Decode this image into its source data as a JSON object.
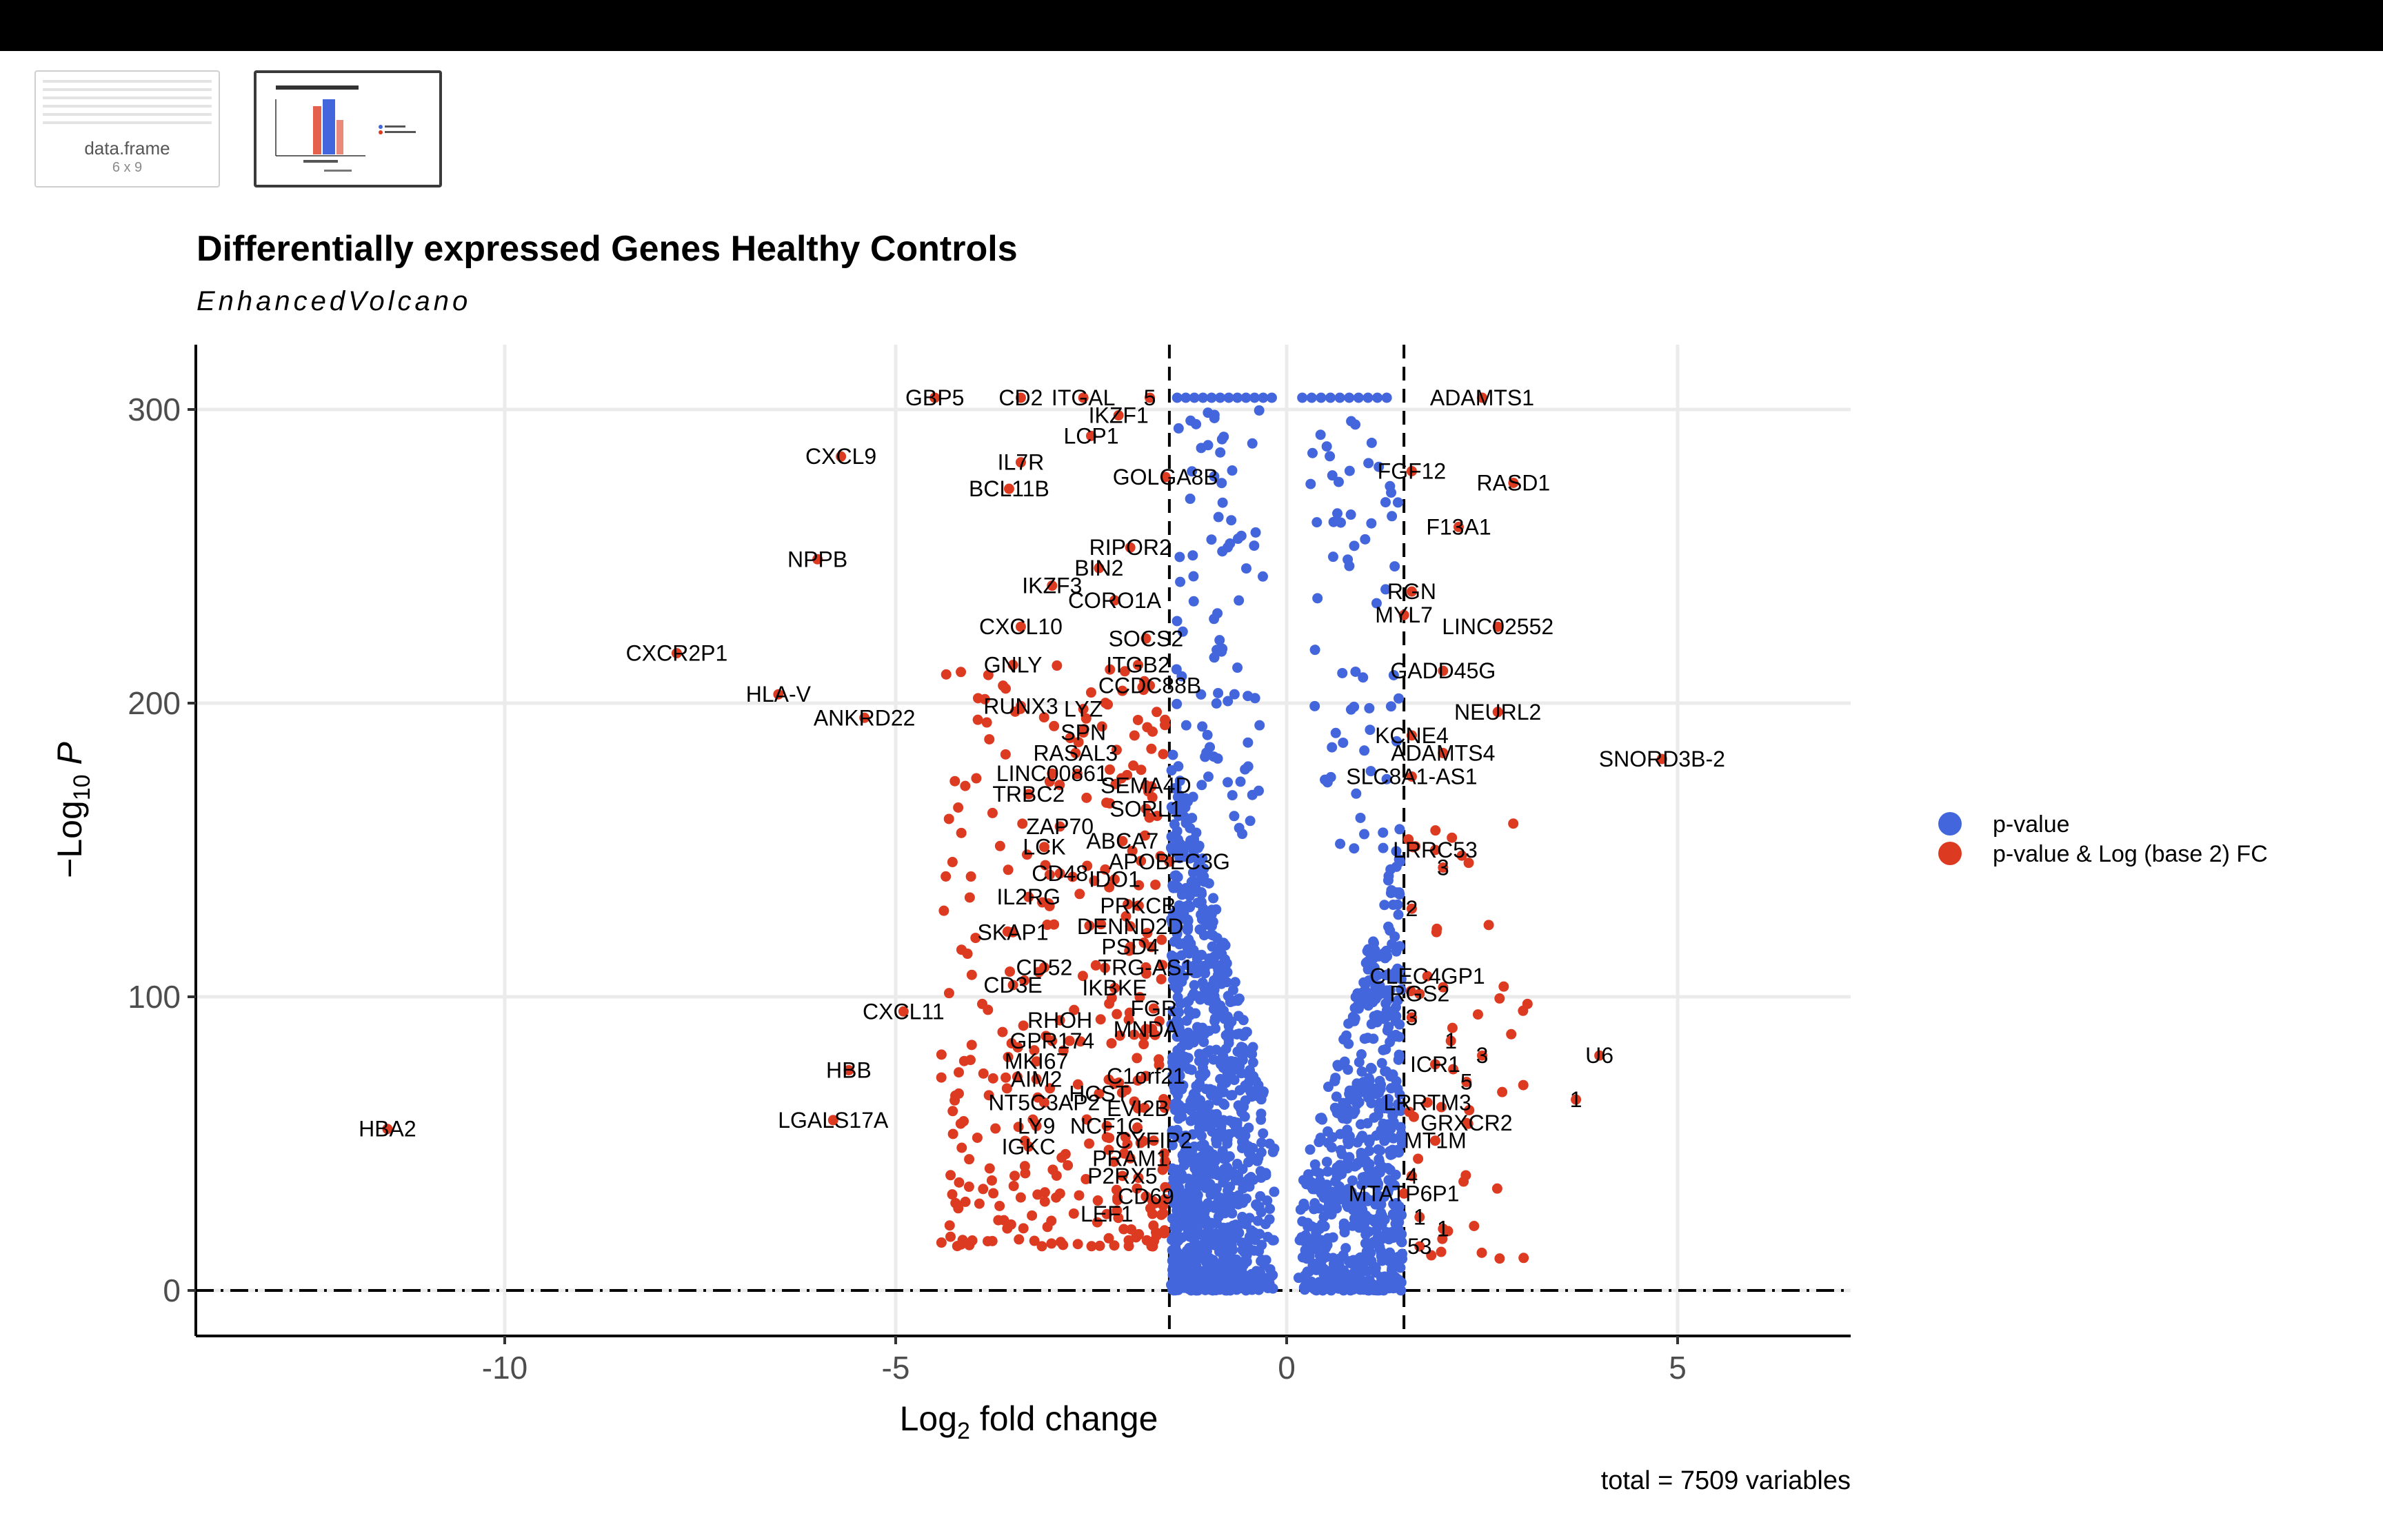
{
  "thumbnails": [
    {
      "label": "data.frame",
      "sublabel": "6 x 9"
    }
  ],
  "chart_data": {
    "type": "scatter",
    "title": "Differentially expressed Genes Healthy Controls",
    "subtitle": "EnhancedVolcano",
    "xlabel": "Log2 fold change",
    "ylabel": "-Log10 P",
    "caption": "total = 7509 variables",
    "xlim": [
      -14,
      7.2
    ],
    "ylim": [
      -15,
      322
    ],
    "x_ticks": [
      -10,
      -5,
      0,
      5
    ],
    "y_ticks": [
      0,
      100,
      200,
      300
    ],
    "fc_cutoff": 1.5,
    "p_cutoff_log10": 0,
    "grid": true,
    "legend_position": "right",
    "colors": {
      "p-value": "#4466dd",
      "p-value & Log (base 2) FC": "#dd3a22",
      "grid": "#ebebeb"
    },
    "series": [
      {
        "name": "p-value"
      },
      {
        "name": "p-value & Log (base 2) FC"
      }
    ],
    "labeled_points": [
      {
        "gene": "GBP5",
        "x": -4.5,
        "y": 304
      },
      {
        "gene": "CD2",
        "x": -3.4,
        "y": 304
      },
      {
        "gene": "ITGAL",
        "x": -2.6,
        "y": 304
      },
      {
        "gene": "5",
        "x": -1.75,
        "y": 304
      },
      {
        "gene": "IKZF1",
        "x": -2.15,
        "y": 298
      },
      {
        "gene": "LCP1",
        "x": -2.5,
        "y": 291
      },
      {
        "gene": "CXCL9",
        "x": -5.7,
        "y": 284
      },
      {
        "gene": "IL7R",
        "x": -3.4,
        "y": 282
      },
      {
        "gene": "GOLGA8B",
        "x": -1.55,
        "y": 277
      },
      {
        "gene": "BCL11B",
        "x": -3.55,
        "y": 273
      },
      {
        "gene": "RIPOR2",
        "x": -2.0,
        "y": 253
      },
      {
        "gene": "NPPB",
        "x": -6.0,
        "y": 249
      },
      {
        "gene": "BIN2",
        "x": -2.4,
        "y": 246
      },
      {
        "gene": "IKZF3",
        "x": -3.0,
        "y": 240
      },
      {
        "gene": "CORO1A",
        "x": -2.2,
        "y": 235
      },
      {
        "gene": "CXCL10",
        "x": -3.4,
        "y": 226
      },
      {
        "gene": "SOCS2",
        "x": -1.8,
        "y": 222
      },
      {
        "gene": "CXCR2P1",
        "x": -7.8,
        "y": 217
      },
      {
        "gene": "GNLY",
        "x": -3.5,
        "y": 213
      },
      {
        "gene": "ITGB2",
        "x": -1.9,
        "y": 213
      },
      {
        "gene": "CCDC88B",
        "x": -1.75,
        "y": 206
      },
      {
        "gene": "HLA-V",
        "x": -6.5,
        "y": 203
      },
      {
        "gene": "RUNX3",
        "x": -3.4,
        "y": 199
      },
      {
        "gene": "LYZ",
        "x": -2.6,
        "y": 198
      },
      {
        "gene": "ANKRD22",
        "x": -5.4,
        "y": 195
      },
      {
        "gene": "SPN",
        "x": -2.6,
        "y": 190
      },
      {
        "gene": "RASAL3",
        "x": -2.7,
        "y": 183
      },
      {
        "gene": "LINC00861",
        "x": -3.0,
        "y": 176
      },
      {
        "gene": "SEMA4D",
        "x": -1.8,
        "y": 172
      },
      {
        "gene": "TRBC2",
        "x": -3.3,
        "y": 169
      },
      {
        "gene": "SORL1",
        "x": -1.8,
        "y": 164
      },
      {
        "gene": "ZAP70",
        "x": -2.9,
        "y": 158
      },
      {
        "gene": "LCK",
        "x": -3.1,
        "y": 151
      },
      {
        "gene": "ABCA7",
        "x": -2.1,
        "y": 153
      },
      {
        "gene": "APOBEC3G",
        "x": -1.5,
        "y": 146
      },
      {
        "gene": "CD48",
        "x": -2.9,
        "y": 142
      },
      {
        "gene": "IDO1",
        "x": -2.2,
        "y": 140
      },
      {
        "gene": "IL2RG",
        "x": -3.3,
        "y": 134
      },
      {
        "gene": "PRKCB",
        "x": -1.9,
        "y": 131
      },
      {
        "gene": "DENND2D",
        "x": -2.0,
        "y": 124
      },
      {
        "gene": "SKAP1",
        "x": -3.5,
        "y": 122
      },
      {
        "gene": "PSD4",
        "x": -2.0,
        "y": 117
      },
      {
        "gene": "CD52",
        "x": -3.1,
        "y": 110
      },
      {
        "gene": "TRG-AS1",
        "x": -1.8,
        "y": 110
      },
      {
        "gene": "CD3E",
        "x": -3.5,
        "y": 104
      },
      {
        "gene": "IKBKE",
        "x": -2.2,
        "y": 103
      },
      {
        "gene": "FGR",
        "x": -1.7,
        "y": 96
      },
      {
        "gene": "CXCL11",
        "x": -4.9,
        "y": 95
      },
      {
        "gene": "RHOH",
        "x": -2.9,
        "y": 92
      },
      {
        "gene": "MNDA",
        "x": -1.8,
        "y": 89
      },
      {
        "gene": "GPR174",
        "x": -3.0,
        "y": 85
      },
      {
        "gene": "MKI67",
        "x": -3.2,
        "y": 78
      },
      {
        "gene": "HBB",
        "x": -5.6,
        "y": 75
      },
      {
        "gene": "AIM2",
        "x": -3.2,
        "y": 72
      },
      {
        "gene": "C1orf21",
        "x": -1.8,
        "y": 73
      },
      {
        "gene": "HCST",
        "x": -2.4,
        "y": 67
      },
      {
        "gene": "NT5C3AP2",
        "x": -3.1,
        "y": 64
      },
      {
        "gene": "EVI2B",
        "x": -1.9,
        "y": 62
      },
      {
        "gene": "LGALS17A",
        "x": -5.8,
        "y": 58
      },
      {
        "gene": "LY9",
        "x": -3.2,
        "y": 56
      },
      {
        "gene": "NCF1C",
        "x": -2.3,
        "y": 56
      },
      {
        "gene": "HBA2",
        "x": -11.5,
        "y": 55
      },
      {
        "gene": "CYFIP2",
        "x": -1.7,
        "y": 51
      },
      {
        "gene": "IGKC",
        "x": -3.3,
        "y": 49
      },
      {
        "gene": "PRAM1",
        "x": -2.0,
        "y": 45
      },
      {
        "gene": "P2RX5",
        "x": -2.1,
        "y": 39
      },
      {
        "gene": "CD69",
        "x": -1.8,
        "y": 32
      },
      {
        "gene": "LEF1",
        "x": -2.3,
        "y": 26
      },
      {
        "gene": "ADAMTS1",
        "x": 2.5,
        "y": 304
      },
      {
        "gene": "FGF12",
        "x": 1.6,
        "y": 279
      },
      {
        "gene": "RASD1",
        "x": 2.9,
        "y": 275
      },
      {
        "gene": "F13A1",
        "x": 2.2,
        "y": 260
      },
      {
        "gene": "RGN",
        "x": 1.6,
        "y": 238
      },
      {
        "gene": "MYL7",
        "x": 1.5,
        "y": 230
      },
      {
        "gene": "LINC02552",
        "x": 2.7,
        "y": 226
      },
      {
        "gene": "GADD45G",
        "x": 2.0,
        "y": 211
      },
      {
        "gene": "NEURL2",
        "x": 2.7,
        "y": 197
      },
      {
        "gene": "KCNE4",
        "x": 1.6,
        "y": 189
      },
      {
        "gene": "ADAMTS4",
        "x": 2.0,
        "y": 183
      },
      {
        "gene": "SNORD3B-2",
        "x": 4.8,
        "y": 181
      },
      {
        "gene": "SLC8A1-AS1",
        "x": 1.6,
        "y": 175
      },
      {
        "gene": "LRRC53",
        "x": 1.9,
        "y": 150
      },
      {
        "gene": "3",
        "x": 2.0,
        "y": 144
      },
      {
        "gene": "2",
        "x": 1.6,
        "y": 130
      },
      {
        "gene": "CLEC4GP1",
        "x": 1.8,
        "y": 107
      },
      {
        "gene": "RGS2",
        "x": 1.7,
        "y": 101
      },
      {
        "gene": "3",
        "x": 1.6,
        "y": 93
      },
      {
        "gene": "1",
        "x": 2.1,
        "y": 85
      },
      {
        "gene": "3",
        "x": 2.5,
        "y": 80
      },
      {
        "gene": "U6",
        "x": 4.0,
        "y": 80
      },
      {
        "gene": "ICR1",
        "x": 1.9,
        "y": 77
      },
      {
        "gene": "5",
        "x": 2.3,
        "y": 71
      },
      {
        "gene": "1",
        "x": 3.7,
        "y": 65
      },
      {
        "gene": "LRRTM3",
        "x": 1.8,
        "y": 64
      },
      {
        "gene": "GRXCR2",
        "x": 2.3,
        "y": 57
      },
      {
        "gene": "MT1M",
        "x": 1.9,
        "y": 51
      },
      {
        "gene": "4",
        "x": 1.6,
        "y": 39
      },
      {
        "gene": "MTATP6P1",
        "x": 1.5,
        "y": 33
      },
      {
        "gene": "1",
        "x": 1.7,
        "y": 25
      },
      {
        "gene": "1",
        "x": 2.0,
        "y": 21
      },
      {
        "gene": "53",
        "x": 1.7,
        "y": 15
      }
    ]
  }
}
